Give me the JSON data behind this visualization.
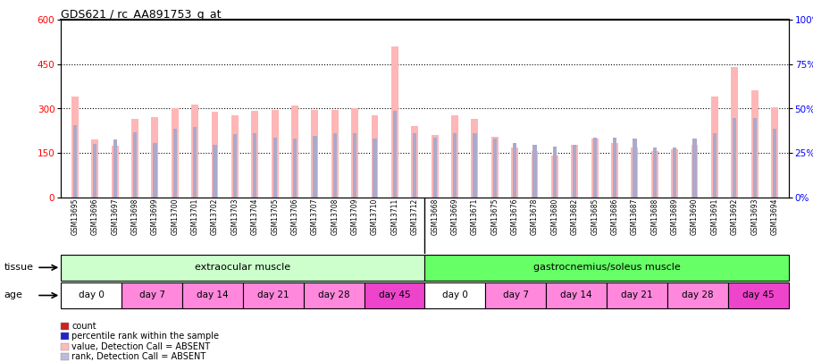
{
  "title": "GDS621 / rc_AA891753_g_at",
  "samples": [
    "GSM13695",
    "GSM13696",
    "GSM13697",
    "GSM13698",
    "GSM13699",
    "GSM13700",
    "GSM13701",
    "GSM13702",
    "GSM13703",
    "GSM13704",
    "GSM13705",
    "GSM13706",
    "GSM13707",
    "GSM13708",
    "GSM13709",
    "GSM13710",
    "GSM13711",
    "GSM13712",
    "GSM13668",
    "GSM13669",
    "GSM13671",
    "GSM13675",
    "GSM13676",
    "GSM13678",
    "GSM13680",
    "GSM13682",
    "GSM13685",
    "GSM13686",
    "GSM13687",
    "GSM13688",
    "GSM13689",
    "GSM13690",
    "GSM13691",
    "GSM13692",
    "GSM13693",
    "GSM13694"
  ],
  "count_values": [
    340,
    195,
    175,
    265,
    270,
    300,
    315,
    290,
    278,
    292,
    295,
    310,
    295,
    295,
    300,
    278,
    510,
    240,
    210,
    278,
    265,
    205,
    168,
    155,
    142,
    178,
    198,
    183,
    168,
    157,
    162,
    178,
    340,
    440,
    362,
    305
  ],
  "rank_values": [
    245,
    180,
    195,
    220,
    185,
    232,
    238,
    178,
    215,
    218,
    202,
    198,
    207,
    218,
    218,
    198,
    292,
    218,
    202,
    218,
    218,
    198,
    185,
    178,
    172,
    178,
    202,
    202,
    198,
    167,
    167,
    198,
    218,
    268,
    268,
    232
  ],
  "ylim_left": [
    0,
    600
  ],
  "ylim_right": [
    0,
    100
  ],
  "yticks_left": [
    0,
    150,
    300,
    450,
    600
  ],
  "yticks_right": [
    0,
    25,
    50,
    75,
    100
  ],
  "bar_color_count": "#FFB6B6",
  "bar_color_rank": "#AAAACC",
  "tissue_groups": [
    {
      "label": "extraocular muscle",
      "start": 0,
      "end": 18,
      "color": "#CCFFCC"
    },
    {
      "label": "gastrocnemius/soleus muscle",
      "start": 18,
      "end": 36,
      "color": "#66FF66"
    }
  ],
  "age_groups": [
    {
      "label": "day 0",
      "start": 0,
      "end": 3,
      "color": "#FFFFFF"
    },
    {
      "label": "day 7",
      "start": 3,
      "end": 6,
      "color": "#FF88DD"
    },
    {
      "label": "day 14",
      "start": 6,
      "end": 9,
      "color": "#FF88DD"
    },
    {
      "label": "day 21",
      "start": 9,
      "end": 12,
      "color": "#FF88DD"
    },
    {
      "label": "day 28",
      "start": 12,
      "end": 15,
      "color": "#FF88DD"
    },
    {
      "label": "day 45",
      "start": 15,
      "end": 18,
      "color": "#EE44CC"
    },
    {
      "label": "day 0",
      "start": 18,
      "end": 21,
      "color": "#FFFFFF"
    },
    {
      "label": "day 7",
      "start": 21,
      "end": 24,
      "color": "#FF88DD"
    },
    {
      "label": "day 14",
      "start": 24,
      "end": 27,
      "color": "#FF88DD"
    },
    {
      "label": "day 21",
      "start": 27,
      "end": 30,
      "color": "#FF88DD"
    },
    {
      "label": "day 28",
      "start": 30,
      "end": 33,
      "color": "#FF88DD"
    },
    {
      "label": "day 45",
      "start": 33,
      "end": 36,
      "color": "#EE44CC"
    }
  ],
  "legend_items": [
    {
      "label": "count",
      "color": "#CC2222"
    },
    {
      "label": "percentile rank within the sample",
      "color": "#2222CC"
    },
    {
      "label": "value, Detection Call = ABSENT",
      "color": "#FFBBBB"
    },
    {
      "label": "rank, Detection Call = ABSENT",
      "color": "#BBBBDD"
    }
  ],
  "background_color": "#FFFFFF"
}
